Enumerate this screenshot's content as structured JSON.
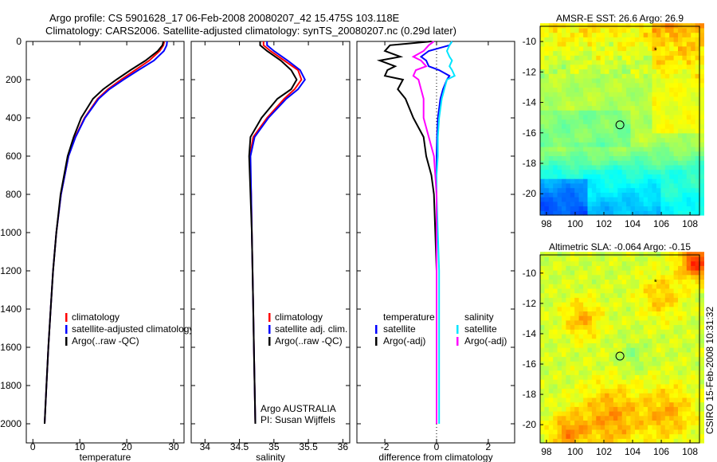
{
  "title_line1": "Argo profile: CS 5901628_17 06-Feb-2008 20080207_42 15.475S 103.118E",
  "title_line2": "Climatology: CARS2006. Satellite-adjusted climatology: synTS_20080207.nc (0.29d later)",
  "side_stamp": "CSIRO 15-Feb-2008 10:31:32",
  "colors": {
    "climatology": "#ff0000",
    "satellite": "#0000ff",
    "argo": "#000000",
    "sal_satellite": "#00e5ff",
    "sal_argo": "#ff00ff"
  },
  "chart_data": [
    {
      "type": "line",
      "id": "temp",
      "xlabel": "temperature",
      "ylabel": "",
      "xlim": [
        -1.4,
        32.2
      ],
      "ylim": [
        0,
        2100
      ],
      "y_reversed": true,
      "xticks": [
        0,
        10,
        20,
        30
      ],
      "yticks": [
        0,
        200,
        400,
        600,
        800,
        1000,
        1200,
        1400,
        1600,
        1800,
        2000
      ],
      "legend": [
        "climatology",
        "satellite-adjusted climatology",
        "Argo(..raw -QC)"
      ],
      "depth": [
        0,
        20,
        50,
        100,
        150,
        200,
        250,
        300,
        400,
        500,
        600,
        800,
        1000,
        1200,
        1400,
        1600,
        1800,
        2000
      ],
      "series": [
        {
          "name": "climatology",
          "color": "#ff0000",
          "values": [
            28.0,
            27.8,
            27.0,
            24.8,
            21.8,
            18.8,
            16.0,
            13.8,
            11.0,
            9.0,
            7.6,
            6.0,
            5.0,
            4.3,
            3.8,
            3.3,
            2.9,
            2.5
          ]
        },
        {
          "name": "satellite-adjusted climatology",
          "color": "#0000ff",
          "values": [
            28.6,
            28.5,
            27.9,
            25.8,
            22.5,
            19.3,
            16.3,
            14.0,
            11.1,
            9.1,
            7.6,
            6.0,
            5.0,
            4.3,
            3.8,
            3.3,
            2.9,
            2.5
          ]
        },
        {
          "name": "Argo(..raw -QC)",
          "color": "#000000",
          "values": [
            27.8,
            27.6,
            26.6,
            24.0,
            20.8,
            17.8,
            15.0,
            12.8,
            10.3,
            8.7,
            7.4,
            5.9,
            5.0,
            4.3,
            3.8,
            3.3,
            2.9,
            2.5
          ]
        }
      ]
    },
    {
      "type": "line",
      "id": "sal",
      "xlabel": "salinity",
      "xlim": [
        33.8,
        36.1
      ],
      "ylim": [
        0,
        2100
      ],
      "y_reversed": true,
      "xticks": [
        34,
        34.5,
        35,
        35.5,
        36
      ],
      "legend": [
        "climatology",
        "satellite adj. clim.",
        "Argo(..raw -QC)"
      ],
      "annotation": [
        "Argo AUSTRALIA",
        "PI: Susan Wijffels"
      ],
      "depth": [
        0,
        20,
        50,
        100,
        150,
        200,
        250,
        300,
        400,
        500,
        600,
        800,
        1000,
        1200,
        1400,
        1600,
        1800,
        2000
      ],
      "series": [
        {
          "name": "climatology",
          "color": "#ff0000",
          "values": [
            34.85,
            34.85,
            34.95,
            35.15,
            35.35,
            35.4,
            35.3,
            35.15,
            34.9,
            34.7,
            34.65,
            34.67,
            34.68,
            34.69,
            34.7,
            34.71,
            34.72,
            34.73
          ]
        },
        {
          "name": "satellite adj. clim.",
          "color": "#0000ff",
          "values": [
            34.9,
            34.9,
            35.0,
            35.2,
            35.38,
            35.45,
            35.35,
            35.18,
            34.92,
            34.72,
            34.66,
            34.67,
            34.68,
            34.69,
            34.7,
            34.71,
            34.72,
            34.73
          ]
        },
        {
          "name": "Argo(..raw -QC)",
          "color": "#000000",
          "values": [
            34.8,
            34.8,
            34.9,
            35.1,
            35.25,
            35.33,
            35.25,
            35.05,
            34.82,
            34.66,
            34.64,
            34.66,
            34.68,
            34.69,
            34.7,
            34.71,
            34.72,
            34.73
          ]
        }
      ]
    },
    {
      "type": "line",
      "id": "diff",
      "xlabel": "difference from climatology",
      "xlim": [
        -3.08,
        3.02
      ],
      "ylim": [
        0,
        2100
      ],
      "y_reversed": true,
      "xticks": [
        -2,
        0,
        2
      ],
      "legend_temperature": {
        "heading": "temperature",
        "items": [
          "satellite",
          "Argo(-adj)"
        ]
      },
      "legend_salinity": {
        "heading": "salinity",
        "items": [
          "satellite",
          "Argo(-adj)"
        ]
      },
      "depth": [
        0,
        20,
        50,
        80,
        100,
        130,
        150,
        180,
        200,
        250,
        300,
        400,
        500,
        600,
        700,
        800,
        1000,
        1200,
        1500,
        2000
      ],
      "series": [
        {
          "name": "temperature satellite",
          "color": "#0000ff",
          "values": [
            0.6,
            0.5,
            -0.3,
            -0.6,
            -0.4,
            -0.3,
            0.1,
            0.5,
            0.4,
            0.25,
            0.15,
            0.05,
            0.02,
            0.0,
            0.0,
            0.0,
            0.0,
            0.0,
            0.0,
            0.0
          ]
        },
        {
          "name": "temperature Argo(-adj)",
          "color": "#000000",
          "values": [
            -0.2,
            -1.8,
            -2.0,
            -1.4,
            -2.2,
            -1.6,
            -1.9,
            -2.0,
            -1.3,
            -1.5,
            -1.2,
            -0.9,
            -0.5,
            -0.4,
            -0.2,
            -0.1,
            -0.05,
            0.0,
            0.0,
            0.0
          ]
        },
        {
          "name": "salinity satellite",
          "color": "#00e5ff",
          "values": [
            0.6,
            0.5,
            0.4,
            0.5,
            0.6,
            0.5,
            0.6,
            0.7,
            0.4,
            0.3,
            0.2,
            0.1,
            0.05,
            0.05,
            0.0,
            0.0,
            0.05,
            0.1,
            0.1,
            0.1
          ]
        },
        {
          "name": "salinity Argo(-adj)",
          "color": "#ff00ff",
          "values": [
            -0.1,
            -0.3,
            -0.5,
            -0.9,
            -0.6,
            -0.4,
            -0.8,
            -0.9,
            -0.7,
            -0.6,
            -0.5,
            -0.5,
            -0.3,
            -0.1,
            -0.05,
            0.0,
            0.0,
            0.0,
            0.0,
            0.0
          ]
        }
      ]
    },
    {
      "type": "heatmap",
      "id": "sst",
      "title": "AMSR-E SST: 26.6 Argo: 26.9",
      "xlim": [
        97.56,
        108.66
      ],
      "ylim": [
        -21.4,
        -9.0
      ],
      "xticks": [
        98,
        100,
        102,
        104,
        106,
        108
      ],
      "yticks": [
        -10,
        -12,
        -14,
        -16,
        -18,
        -20
      ],
      "profile_marker": {
        "lon": 103.118,
        "lat": -15.475
      },
      "star_marker": {
        "lon": 105.6,
        "lat": -10.5
      }
    },
    {
      "type": "heatmap",
      "id": "sla",
      "title": "Altimetric SLA: -0.064 Argo: -0.15",
      "xlim": [
        97.56,
        108.66
      ],
      "ylim": [
        -21.2,
        -8.8
      ],
      "xticks": [
        98,
        100,
        102,
        104,
        106,
        108
      ],
      "yticks": [
        -10,
        -12,
        -14,
        -16,
        -18,
        -20
      ],
      "profile_marker": {
        "lon": 103.118,
        "lat": -15.475
      },
      "star_marker": {
        "lon": 105.6,
        "lat": -10.5
      }
    }
  ]
}
